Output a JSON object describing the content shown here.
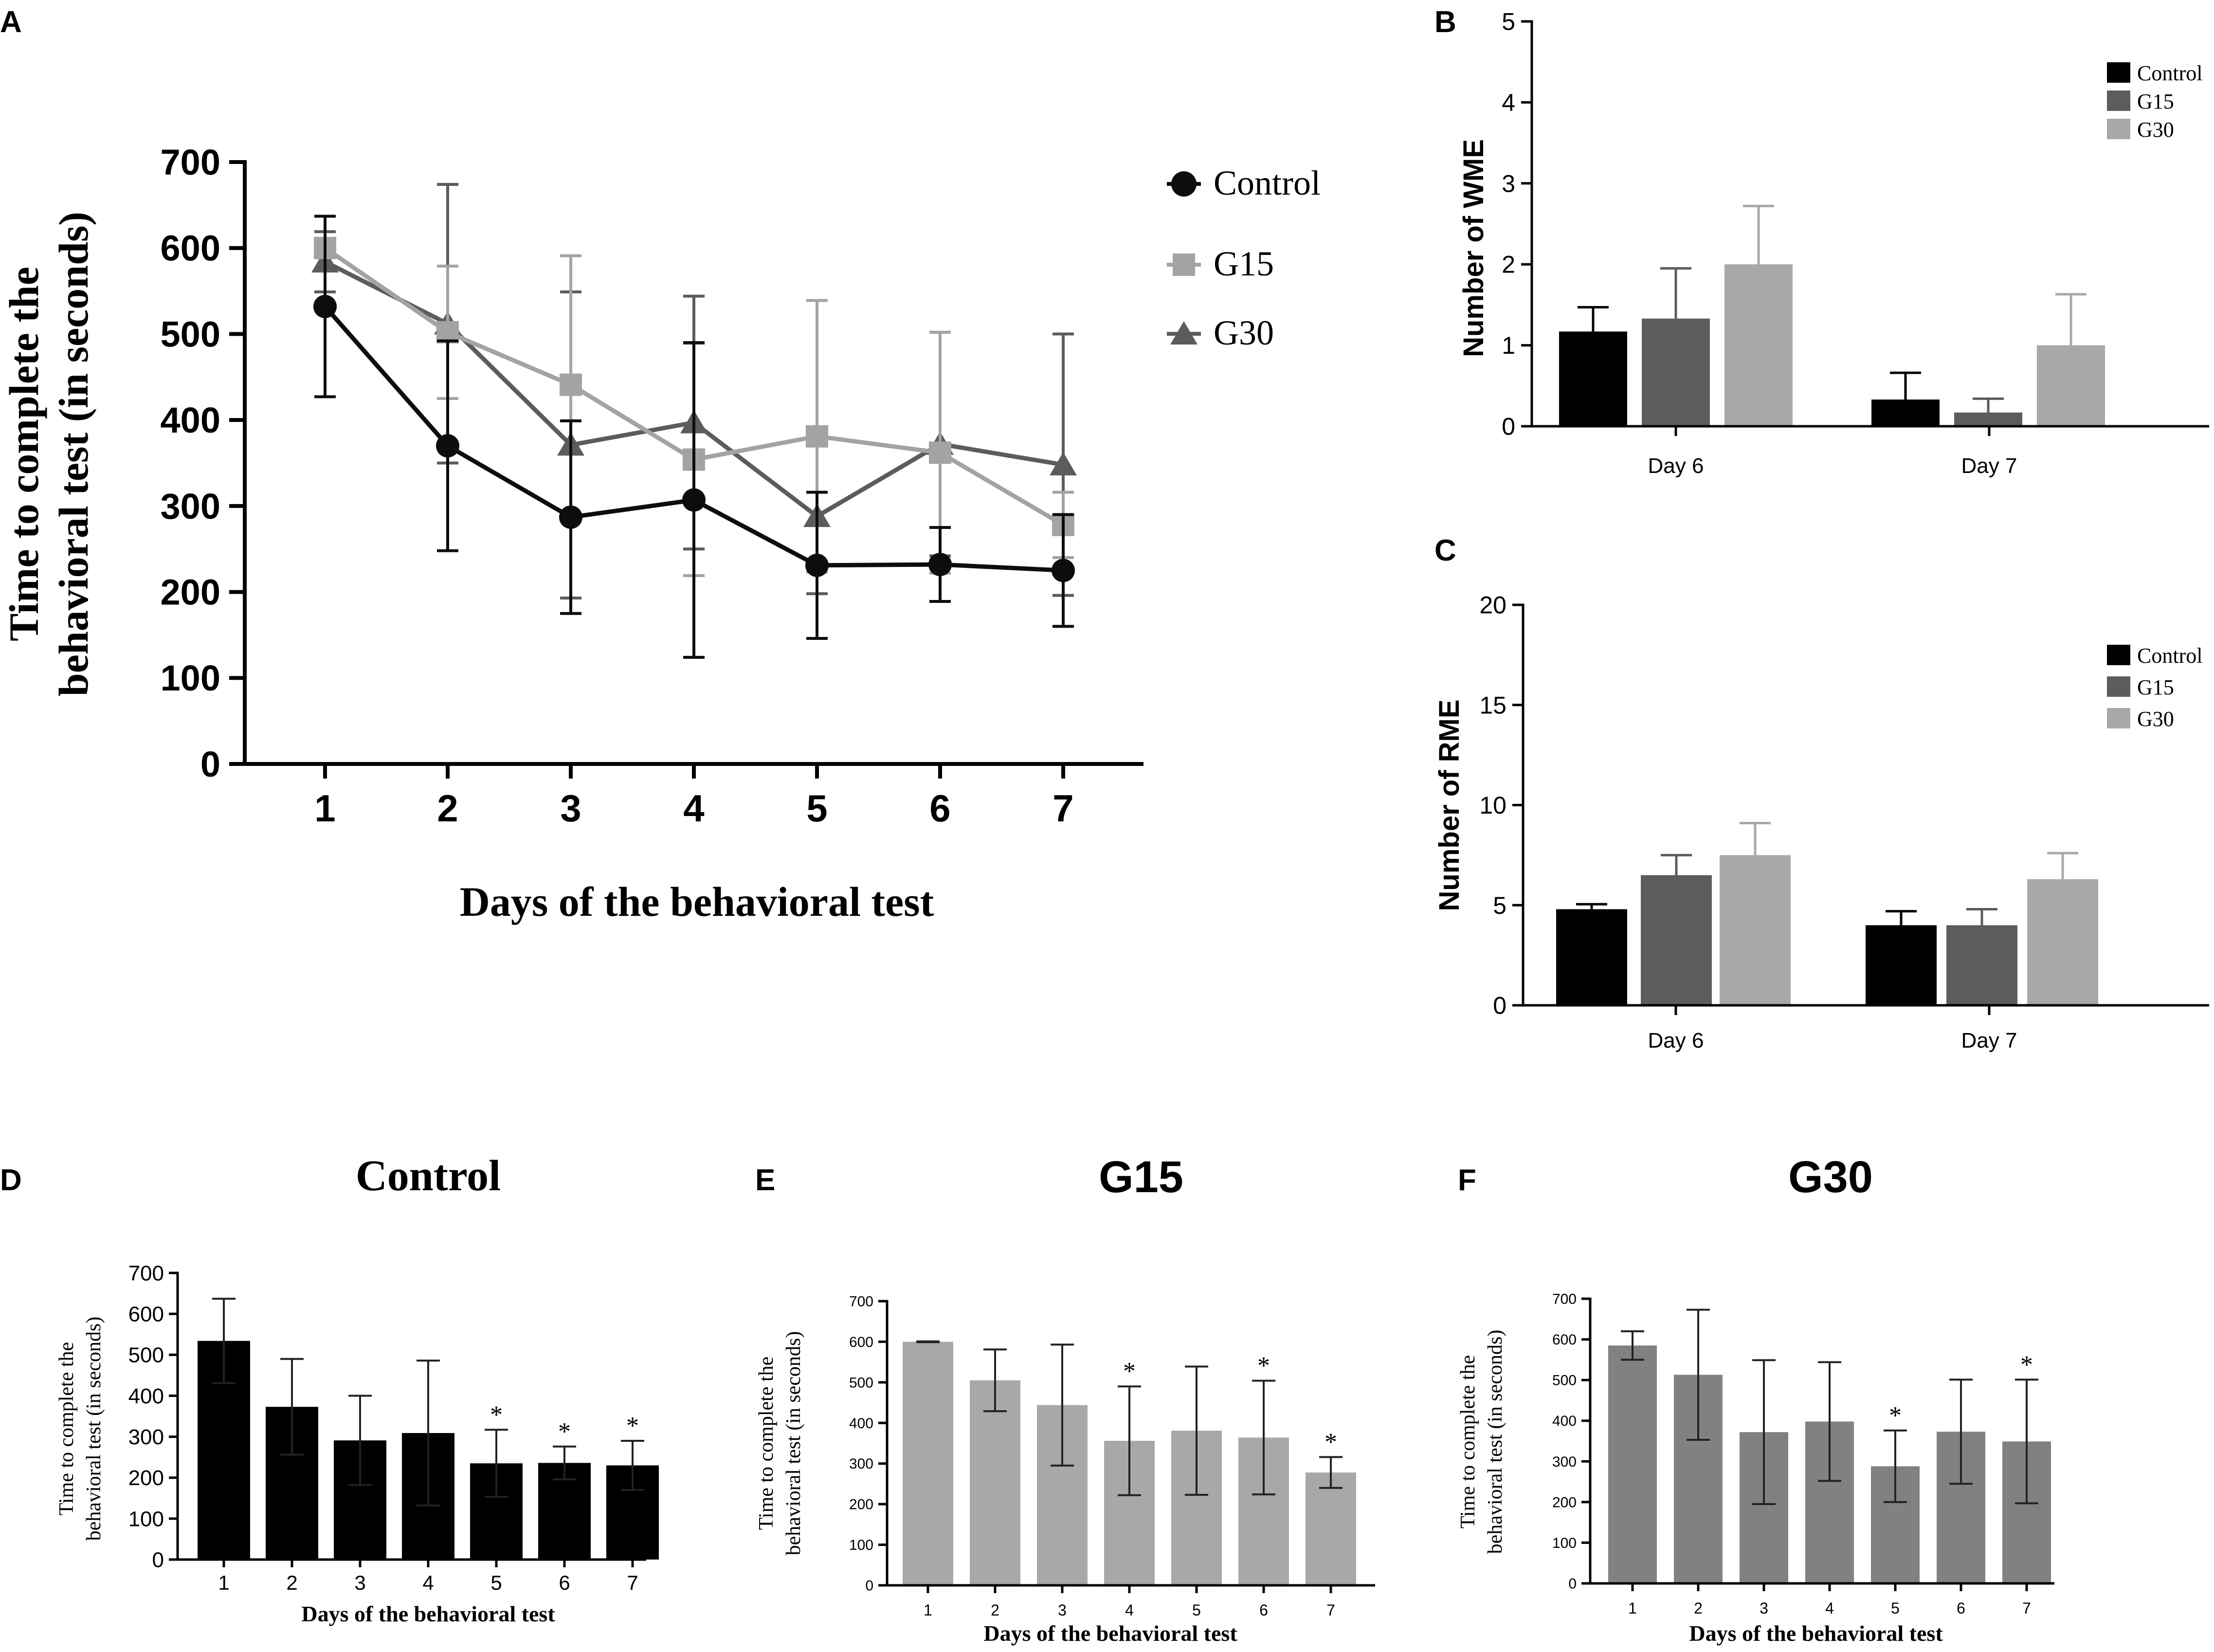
{
  "colors": {
    "control": "#0d0d0d",
    "g15": "#a3a3a3",
    "g30": "#5c5c5c",
    "ctrl_bar": "#000000",
    "g15_bar": "#a8a8a8",
    "g30_bar": "#818181",
    "axis": "#000000"
  },
  "chart_data": [
    {
      "id": "A",
      "panel_label": "A",
      "type": "line",
      "title": "",
      "xlabel": "Days of the behavioral test",
      "ylabel_line1": "Time to complete the",
      "ylabel_line2": "behavioral test  (in seconds)",
      "x": [
        1,
        2,
        3,
        4,
        5,
        6,
        7
      ],
      "x_tick_labels": [
        "1",
        "2",
        "3",
        "4",
        "5",
        "6",
        "7"
      ],
      "ylim": [
        0,
        700
      ],
      "y_ticks": [
        0,
        100,
        200,
        300,
        400,
        500,
        600,
        700
      ],
      "y_tick_labels": [
        "0",
        "100",
        "200",
        "300",
        "400",
        "500",
        "600",
        "700"
      ],
      "legend_position": "top-right",
      "series": [
        {
          "name": "Control",
          "marker": "circle",
          "values": [
            532,
            370,
            287,
            307,
            231,
            232,
            225
          ],
          "errors": [
            105,
            122,
            112,
            183,
            85,
            43,
            65
          ]
        },
        {
          "name": "G15",
          "marker": "square",
          "values": [
            600,
            502,
            441,
            354,
            381,
            362,
            278
          ],
          "errors": [
            2,
            77,
            150,
            135,
            158,
            140,
            38
          ]
        },
        {
          "name": "G30",
          "marker": "triangle",
          "values": [
            584,
            512,
            371,
            397,
            288,
            372,
            348
          ],
          "errors": [
            35,
            162,
            178,
            147,
            90,
            130,
            152
          ]
        }
      ]
    },
    {
      "id": "B",
      "panel_label": "B",
      "type": "bar",
      "title": "",
      "xlabel": "",
      "ylabel": "Number of WME",
      "categories": [
        "Day 6",
        "Day 7"
      ],
      "ylim": [
        0,
        5
      ],
      "y_ticks": [
        0,
        1,
        2,
        3,
        4,
        5
      ],
      "y_tick_labels": [
        "0",
        "1",
        "2",
        "3",
        "4",
        "5"
      ],
      "legend_position": "top-right",
      "series": [
        {
          "name": "Control",
          "values": [
            1.17,
            0.33
          ],
          "errors": [
            0.3,
            0.33
          ]
        },
        {
          "name": "G15",
          "values": [
            1.33,
            0.17
          ],
          "errors": [
            0.62,
            0.17
          ]
        },
        {
          "name": "G30",
          "values": [
            2.0,
            1.0
          ],
          "errors": [
            0.72,
            0.63
          ]
        }
      ]
    },
    {
      "id": "C",
      "panel_label": "C",
      "type": "bar",
      "title": "",
      "xlabel": "",
      "ylabel": "Number of RME",
      "categories": [
        "Day 6",
        "Day 7"
      ],
      "ylim": [
        0,
        20
      ],
      "y_ticks": [
        0,
        5,
        10,
        15,
        20
      ],
      "y_tick_labels": [
        "0",
        "5",
        "10",
        "15",
        "20"
      ],
      "legend_position": "top-right",
      "series": [
        {
          "name": "Control",
          "values": [
            4.8,
            4.0
          ],
          "errors": [
            0.25,
            0.7
          ]
        },
        {
          "name": "G15",
          "values": [
            6.5,
            4.0
          ],
          "errors": [
            1.0,
            0.8
          ]
        },
        {
          "name": "G30",
          "values": [
            7.5,
            6.3
          ],
          "errors": [
            1.6,
            1.3
          ]
        }
      ]
    },
    {
      "id": "D",
      "panel_label": "D",
      "type": "bar",
      "title": "Control",
      "xlabel": "Days of the behavioral test",
      "ylabel_line1": "Time to complete the",
      "ylabel_line2": "behavioral test  (in seconds)",
      "categories": [
        "1",
        "2",
        "3",
        "4",
        "5",
        "6",
        "7"
      ],
      "ylim": [
        0,
        700
      ],
      "y_ticks": [
        0,
        100,
        200,
        300,
        400,
        500,
        600,
        700
      ],
      "y_tick_labels": [
        "0",
        "100",
        "200",
        "300",
        "400",
        "500",
        "600",
        "700"
      ],
      "values": [
        534,
        373,
        291,
        309,
        235,
        236,
        230
      ],
      "errors": [
        103,
        117,
        109,
        177,
        82,
        40,
        60
      ],
      "annotations": [
        "",
        "",
        "",
        "",
        "*",
        "*",
        "*"
      ]
    },
    {
      "id": "E",
      "panel_label": "E",
      "type": "bar",
      "title": "G15",
      "xlabel": "Days of the behavioral test",
      "ylabel_line1": "Time to complete the",
      "ylabel_line2": "behavioral test  (in seconds)",
      "categories": [
        "1",
        "2",
        "3",
        "4",
        "5",
        "6",
        "7"
      ],
      "ylim": [
        0,
        700
      ],
      "y_ticks": [
        0,
        100,
        200,
        300,
        400,
        500,
        600,
        700
      ],
      "y_tick_labels": [
        "0",
        "100",
        "200",
        "300",
        "400",
        "500",
        "600",
        "700"
      ],
      "values": [
        600,
        505,
        444,
        356,
        381,
        364,
        278
      ],
      "errors": [
        1,
        76,
        149,
        134,
        158,
        140,
        38
      ],
      "annotations": [
        "",
        "",
        "",
        "*",
        "",
        "*",
        "*"
      ]
    },
    {
      "id": "F",
      "panel_label": "F",
      "type": "bar",
      "title": "G30",
      "xlabel": "Days of the behavioral test",
      "ylabel_line1": "Time to complete the",
      "ylabel_line2": "behavioral test  (in seconds)",
      "categories": [
        "1",
        "2",
        "3",
        "4",
        "5",
        "6",
        "7"
      ],
      "ylim": [
        0,
        700
      ],
      "y_ticks": [
        0,
        100,
        200,
        300,
        400,
        500,
        600,
        700
      ],
      "y_tick_labels": [
        "0",
        "100",
        "200",
        "300",
        "400",
        "500",
        "600",
        "700"
      ],
      "values": [
        585,
        513,
        372,
        398,
        288,
        373,
        349
      ],
      "errors": [
        35,
        160,
        177,
        146,
        88,
        128,
        152
      ],
      "annotations": [
        "",
        "",
        "",
        "",
        "*",
        "",
        "*"
      ]
    }
  ]
}
